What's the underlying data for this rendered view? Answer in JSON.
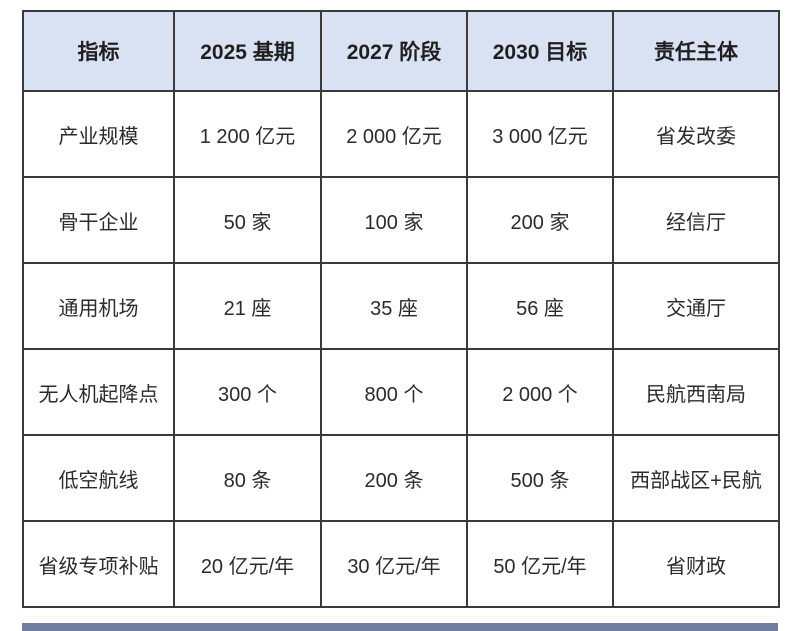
{
  "table": {
    "columns": [
      "指标",
      "2025 基期",
      "2027 阶段",
      "2030 目标",
      "责任主体"
    ],
    "rows": [
      [
        "产业规模",
        "1 200 亿元",
        "2 000 亿元",
        "3 000 亿元",
        "省发改委"
      ],
      [
        "骨干企业",
        "50 家",
        "100 家",
        "200 家",
        "经信厅"
      ],
      [
        "通用机场",
        "21 座",
        "35 座",
        "56 座",
        "交通厅"
      ],
      [
        "无人机起降点",
        "300 个",
        "800 个",
        "2 000 个",
        "民航西南局"
      ],
      [
        "低空航线",
        "80 条",
        "200 条",
        "500 条",
        "西部战区+民航"
      ],
      [
        "省级专项补贴",
        "20 亿元/年",
        "30 亿元/年",
        "50 亿元/年",
        "省财政"
      ]
    ]
  },
  "colors": {
    "header_bg": "#d9e2f3",
    "border": "#3a3a3a",
    "header_text": "#1f1f1f",
    "body_text": "#2b2b2b",
    "bottom_strip": "#6e7fa3"
  }
}
